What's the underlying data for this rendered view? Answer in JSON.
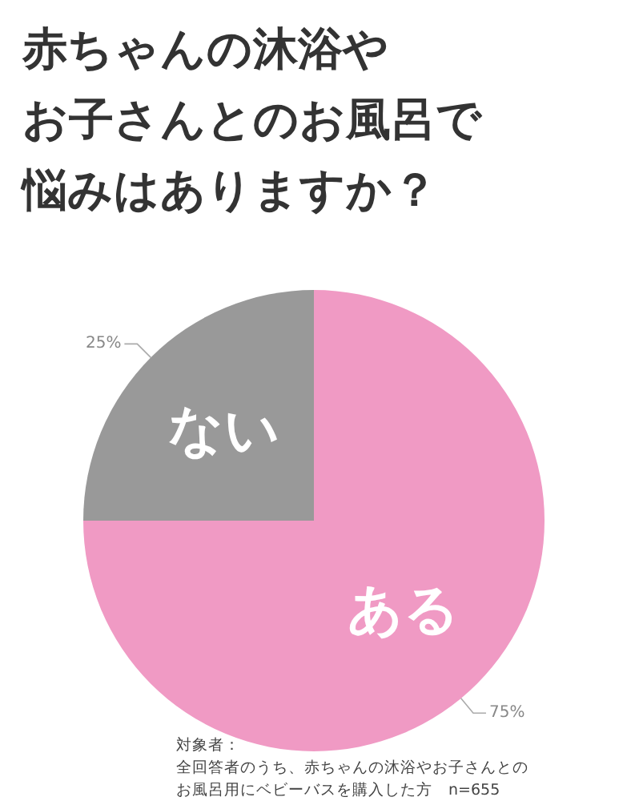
{
  "chart_data": {
    "type": "pie",
    "title": "赤ちゃんの沐浴やお子さんとのお風呂で悩みはありますか？",
    "categories": [
      "ある",
      "ない"
    ],
    "values": [
      75,
      25
    ],
    "colors": [
      "#f09ac4",
      "#999999"
    ],
    "value_labels": [
      "75%",
      "25%"
    ],
    "annotations": [
      "対象者：",
      "全回答者のうち、赤ちゃんの沐浴やお子さんとのお風呂用にベビーバスを購入した方　n=655"
    ]
  }
}
